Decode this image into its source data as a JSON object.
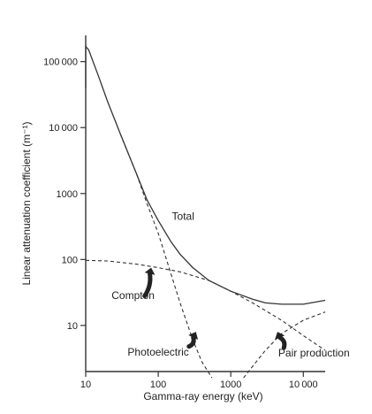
{
  "chart_data": {
    "type": "line",
    "title": "",
    "xlabel": "Gamma-ray energy (keV)",
    "ylabel": "Linear attenuation coefficient (m⁻¹)",
    "xscale": "log",
    "yscale": "log",
    "xlim": [
      10,
      20000
    ],
    "ylim": [
      2,
      250000
    ],
    "x_ticks": [
      {
        "value": 10,
        "label": "10"
      },
      {
        "value": 100,
        "label": "100"
      },
      {
        "value": 1000,
        "label": "1000"
      },
      {
        "value": 10000,
        "label": "10 000"
      }
    ],
    "y_ticks": [
      {
        "value": 10,
        "label": "10"
      },
      {
        "value": 100,
        "label": "100"
      },
      {
        "value": 1000,
        "label": "1000"
      },
      {
        "value": 10000,
        "label": "10 000"
      },
      {
        "value": 100000,
        "label": "100 000"
      }
    ],
    "grid": false,
    "series": [
      {
        "name": "Total",
        "style": "solid",
        "color": "#333333",
        "points": [
          [
            10,
            40000
          ],
          [
            10,
            170000
          ],
          [
            11,
            150000
          ],
          [
            15,
            60000
          ],
          [
            20,
            25000
          ],
          [
            30,
            8000
          ],
          [
            50,
            2000
          ],
          [
            70,
            800
          ],
          [
            100,
            390
          ],
          [
            150,
            185
          ],
          [
            200,
            120
          ],
          [
            300,
            75
          ],
          [
            500,
            48
          ],
          [
            1000,
            33
          ],
          [
            2000,
            25
          ],
          [
            3000,
            22
          ],
          [
            5000,
            21
          ],
          [
            10000,
            21
          ],
          [
            20000,
            24
          ]
        ]
      },
      {
        "name": "Compton",
        "style": "dashed",
        "color": "#333333",
        "points": [
          [
            10,
            97
          ],
          [
            20,
            95
          ],
          [
            50,
            85
          ],
          [
            100,
            75
          ],
          [
            200,
            65
          ],
          [
            500,
            48
          ],
          [
            1000,
            33
          ],
          [
            2000,
            22
          ],
          [
            5000,
            12
          ],
          [
            10000,
            7
          ],
          [
            20000,
            4.2
          ]
        ]
      },
      {
        "name": "Photoelectric",
        "style": "dashed",
        "color": "#333333",
        "points": [
          [
            30,
            8000
          ],
          [
            50,
            2000
          ],
          [
            70,
            700
          ],
          [
            100,
            250
          ],
          [
            150,
            60
          ],
          [
            200,
            22
          ],
          [
            300,
            6
          ],
          [
            400,
            2.8
          ],
          [
            550,
            1.6
          ]
        ]
      },
      {
        "name": "Pair production",
        "style": "dashed",
        "color": "#333333",
        "points": [
          [
            1500,
            1.6
          ],
          [
            2000,
            2.4
          ],
          [
            3000,
            4.2
          ],
          [
            5000,
            7.5
          ],
          [
            10000,
            12
          ],
          [
            20000,
            16
          ]
        ]
      }
    ],
    "annotations": [
      {
        "text": "Total",
        "series": "Total",
        "x": 220,
        "y": 400
      },
      {
        "text": "Compton",
        "series": "Compton",
        "x": 45,
        "y": 25
      },
      {
        "text": "Photoelectric",
        "series": "Photoelectric",
        "x": 100,
        "y": 3.5
      },
      {
        "text": "Pair production",
        "series": "Pair production",
        "x": 14000,
        "y": 3.4
      }
    ],
    "arrows": [
      {
        "series": "Compton",
        "tail": [
          65,
          28
        ],
        "head": [
          80,
          75
        ]
      },
      {
        "series": "Photoelectric",
        "tail": [
          265,
          4.8
        ],
        "head": [
          330,
          8
        ]
      },
      {
        "series": "Pair production",
        "tail": [
          5400,
          4.6
        ],
        "head": [
          4400,
          8
        ]
      }
    ]
  }
}
